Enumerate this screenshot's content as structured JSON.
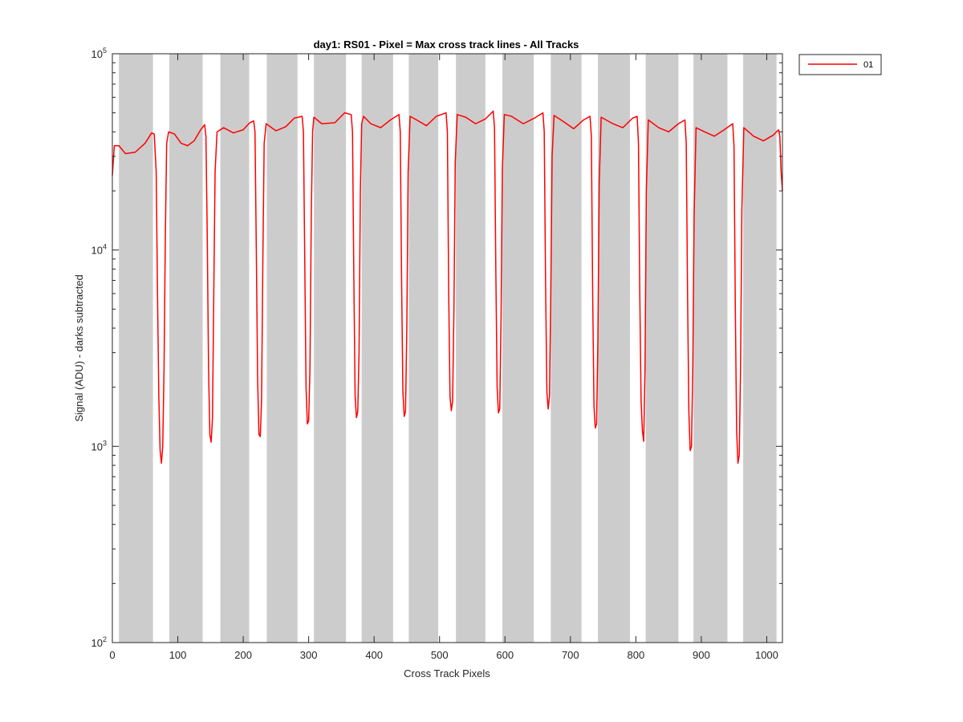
{
  "chart_data": {
    "type": "line",
    "title": "day1: RS01 - Pixel = Max cross track lines - All Tracks",
    "xlabel": "Cross Track Pixels",
    "ylabel": "Signal (ADU) - darks subtracted",
    "xlim": [
      0,
      1024
    ],
    "ylim": [
      100,
      100000
    ],
    "yscale": "log",
    "x_ticks": [
      0,
      100,
      200,
      300,
      400,
      500,
      600,
      700,
      800,
      900,
      1000
    ],
    "x_tick_labels": [
      "0",
      "100",
      "200",
      "300",
      "400",
      "500",
      "600",
      "700",
      "800",
      "900",
      "1000"
    ],
    "y_ticks": [
      100,
      1000,
      10000,
      100000
    ],
    "y_tick_labels": [
      {
        "base": "10",
        "exp": "2"
      },
      {
        "base": "10",
        "exp": "3"
      },
      {
        "base": "10",
        "exp": "4"
      },
      {
        "base": "10",
        "exp": "5"
      }
    ],
    "grid": false,
    "legend_position": "outside-top-right",
    "shaded_bands": [
      [
        10,
        62
      ],
      [
        87,
        138
      ],
      [
        165,
        209
      ],
      [
        236,
        283
      ],
      [
        308,
        357
      ],
      [
        381,
        429
      ],
      [
        453,
        498
      ],
      [
        525,
        570
      ],
      [
        596,
        644
      ],
      [
        670,
        717
      ],
      [
        742,
        791
      ],
      [
        815,
        865
      ],
      [
        888,
        940
      ],
      [
        964,
        1015
      ]
    ],
    "series": [
      {
        "name": "01",
        "color": "#ff0000",
        "points": [
          [
            0,
            24000
          ],
          [
            3,
            34000
          ],
          [
            10,
            34000
          ],
          [
            20,
            31000
          ],
          [
            35,
            31500
          ],
          [
            50,
            35000
          ],
          [
            60,
            39500
          ],
          [
            64,
            39000
          ],
          [
            67,
            25000
          ],
          [
            69,
            6000
          ],
          [
            71,
            1800
          ],
          [
            73,
            950
          ],
          [
            75,
            820
          ],
          [
            77,
            1000
          ],
          [
            79,
            2500
          ],
          [
            81,
            12000
          ],
          [
            83,
            35000
          ],
          [
            86,
            40000
          ],
          [
            95,
            39000
          ],
          [
            105,
            35000
          ],
          [
            115,
            34000
          ],
          [
            125,
            36000
          ],
          [
            135,
            41000
          ],
          [
            141,
            43500
          ],
          [
            143,
            38000
          ],
          [
            145,
            12000
          ],
          [
            147,
            2500
          ],
          [
            149,
            1150
          ],
          [
            151,
            1050
          ],
          [
            153,
            1400
          ],
          [
            155,
            6000
          ],
          [
            157,
            25000
          ],
          [
            160,
            40000
          ],
          [
            170,
            42000
          ],
          [
            185,
            39500
          ],
          [
            200,
            41000
          ],
          [
            210,
            44500
          ],
          [
            216,
            45500
          ],
          [
            218,
            40000
          ],
          [
            220,
            10000
          ],
          [
            222,
            2200
          ],
          [
            224,
            1150
          ],
          [
            226,
            1120
          ],
          [
            228,
            1700
          ],
          [
            230,
            9000
          ],
          [
            232,
            35000
          ],
          [
            235,
            44000
          ],
          [
            250,
            40500
          ],
          [
            265,
            42500
          ],
          [
            278,
            47000
          ],
          [
            290,
            48000
          ],
          [
            292,
            40000
          ],
          [
            294,
            9000
          ],
          [
            296,
            2000
          ],
          [
            298,
            1300
          ],
          [
            300,
            1350
          ],
          [
            302,
            2500
          ],
          [
            304,
            15000
          ],
          [
            306,
            40000
          ],
          [
            308,
            47500
          ],
          [
            320,
            44000
          ],
          [
            340,
            44500
          ],
          [
            355,
            50000
          ],
          [
            365,
            49000
          ],
          [
            367,
            40000
          ],
          [
            369,
            7500
          ],
          [
            371,
            1800
          ],
          [
            373,
            1400
          ],
          [
            375,
            1500
          ],
          [
            377,
            3000
          ],
          [
            379,
            20000
          ],
          [
            381,
            44000
          ],
          [
            384,
            48000
          ],
          [
            395,
            44000
          ],
          [
            410,
            42000
          ],
          [
            425,
            46000
          ],
          [
            438,
            49000
          ],
          [
            440,
            40000
          ],
          [
            442,
            7000
          ],
          [
            444,
            1900
          ],
          [
            446,
            1420
          ],
          [
            448,
            1500
          ],
          [
            450,
            4000
          ],
          [
            452,
            25000
          ],
          [
            455,
            48000
          ],
          [
            465,
            46000
          ],
          [
            480,
            43000
          ],
          [
            495,
            48000
          ],
          [
            510,
            50000
          ],
          [
            512,
            40000
          ],
          [
            514,
            6000
          ],
          [
            516,
            1800
          ],
          [
            518,
            1520
          ],
          [
            520,
            1700
          ],
          [
            522,
            5000
          ],
          [
            524,
            28000
          ],
          [
            527,
            49000
          ],
          [
            540,
            47500
          ],
          [
            555,
            44000
          ],
          [
            570,
            46500
          ],
          [
            582,
            51000
          ],
          [
            584,
            42000
          ],
          [
            586,
            8000
          ],
          [
            588,
            2000
          ],
          [
            590,
            1480
          ],
          [
            592,
            1550
          ],
          [
            594,
            4500
          ],
          [
            596,
            26000
          ],
          [
            599,
            49000
          ],
          [
            610,
            48000
          ],
          [
            628,
            44000
          ],
          [
            645,
            47000
          ],
          [
            658,
            50000
          ],
          [
            660,
            40000
          ],
          [
            662,
            7000
          ],
          [
            664,
            1900
          ],
          [
            666,
            1550
          ],
          [
            668,
            1800
          ],
          [
            670,
            6000
          ],
          [
            672,
            30000
          ],
          [
            675,
            48500
          ],
          [
            690,
            45000
          ],
          [
            705,
            41500
          ],
          [
            720,
            46000
          ],
          [
            730,
            48000
          ],
          [
            732,
            38000
          ],
          [
            734,
            6000
          ],
          [
            736,
            1600
          ],
          [
            738,
            1240
          ],
          [
            740,
            1300
          ],
          [
            742,
            3500
          ],
          [
            744,
            22000
          ],
          [
            747,
            47500
          ],
          [
            765,
            44000
          ],
          [
            780,
            42000
          ],
          [
            795,
            47000
          ],
          [
            802,
            48000
          ],
          [
            804,
            35000
          ],
          [
            806,
            6000
          ],
          [
            808,
            1700
          ],
          [
            810,
            1200
          ],
          [
            812,
            1060
          ],
          [
            814,
            2500
          ],
          [
            816,
            20000
          ],
          [
            819,
            46000
          ],
          [
            835,
            42000
          ],
          [
            850,
            40000
          ],
          [
            865,
            44000
          ],
          [
            875,
            46000
          ],
          [
            877,
            35000
          ],
          [
            879,
            6000
          ],
          [
            881,
            1500
          ],
          [
            883,
            950
          ],
          [
            885,
            1000
          ],
          [
            887,
            2500
          ],
          [
            889,
            15000
          ],
          [
            892,
            42000
          ],
          [
            905,
            40000
          ],
          [
            920,
            38000
          ],
          [
            935,
            41000
          ],
          [
            948,
            44000
          ],
          [
            950,
            34000
          ],
          [
            952,
            5000
          ],
          [
            954,
            1200
          ],
          [
            956,
            820
          ],
          [
            958,
            900
          ],
          [
            960,
            2500
          ],
          [
            962,
            16000
          ],
          [
            965,
            42000
          ],
          [
            980,
            38000
          ],
          [
            995,
            36000
          ],
          [
            1010,
            38500
          ],
          [
            1018,
            41000
          ],
          [
            1020,
            38000
          ],
          [
            1022,
            25000
          ],
          [
            1024,
            20000
          ]
        ]
      }
    ]
  }
}
